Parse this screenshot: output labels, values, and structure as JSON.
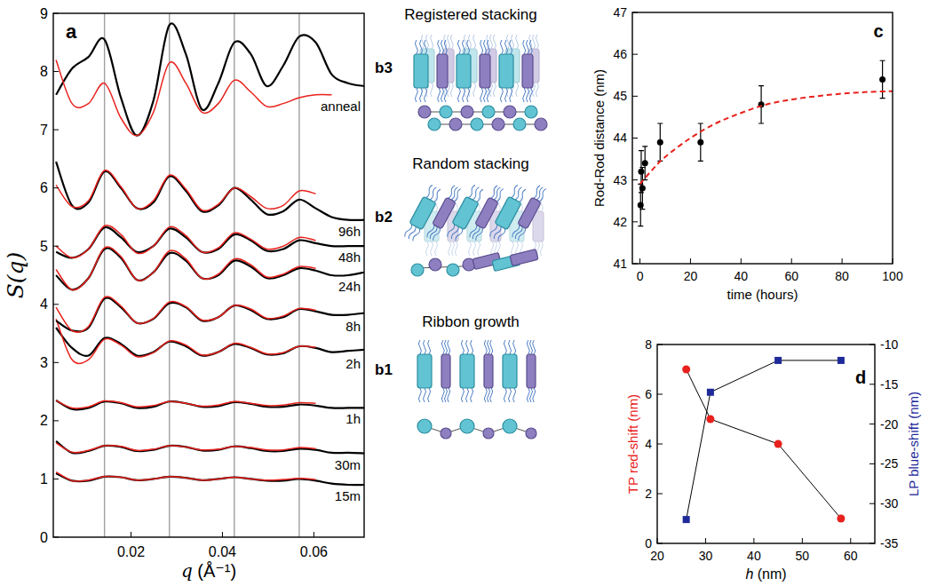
{
  "chart_data": [
    {
      "type": "line",
      "panel_label": "a",
      "x_label": "q  (Å⁻¹)",
      "y_label": "S(q)",
      "x": [
        0.0036,
        0.0071,
        0.0107,
        0.0142,
        0.0178,
        0.0213,
        0.0249,
        0.0284,
        0.032,
        0.0355,
        0.0391,
        0.0426,
        0.0462,
        0.0497,
        0.0533,
        0.0568,
        0.0604,
        0.0639,
        0.0675,
        0.071
      ],
      "xlim": [
        0.003,
        0.071
      ],
      "xticks": [
        0.02,
        0.04,
        0.06
      ],
      "ylim": [
        0,
        9
      ],
      "yticks": [
        0,
        1,
        2,
        3,
        4,
        5,
        6,
        7,
        8,
        9
      ],
      "reference_lines": [
        0.0142,
        0.0284,
        0.0426,
        0.0568
      ],
      "series": [
        {
          "name": "15m",
          "color": "#000000",
          "values": [
            1.1,
            0.97,
            0.97,
            1.04,
            1.03,
            0.98,
            1.0,
            1.04,
            1.02,
            0.98,
            1.0,
            1.03,
            1.0,
            0.97,
            0.97,
            1.0,
            0.97,
            0.92,
            0.9,
            0.9
          ]
        },
        {
          "color": "#e8211c",
          "values": [
            1.12,
            0.97,
            0.98,
            1.04,
            1.03,
            0.98,
            1.0,
            1.04,
            1.02,
            0.98,
            1.0,
            1.03,
            1.0,
            0.98,
            0.99,
            1.01,
            0.99,
            null,
            null,
            null
          ]
        },
        {
          "name": "30m",
          "color": "#000000",
          "values": [
            1.65,
            1.45,
            1.48,
            1.57,
            1.55,
            1.48,
            1.5,
            1.57,
            1.55,
            1.49,
            1.5,
            1.56,
            1.53,
            1.48,
            1.48,
            1.52,
            1.5,
            1.45,
            1.45,
            1.44
          ]
        },
        {
          "color": "#e8211c",
          "values": [
            1.62,
            1.46,
            1.49,
            1.57,
            1.56,
            1.49,
            1.51,
            1.57,
            1.55,
            1.5,
            1.51,
            1.56,
            1.54,
            1.5,
            1.5,
            1.54,
            1.52,
            null,
            null,
            null
          ]
        },
        {
          "name": "1h",
          "color": "#000000",
          "values": [
            2.35,
            2.2,
            2.22,
            2.33,
            2.3,
            2.22,
            2.24,
            2.33,
            2.3,
            2.24,
            2.25,
            2.32,
            2.29,
            2.24,
            2.24,
            2.28,
            2.26,
            2.22,
            2.22,
            2.22
          ]
        },
        {
          "color": "#e8211c",
          "values": [
            2.35,
            2.22,
            2.24,
            2.34,
            2.31,
            2.24,
            2.26,
            2.33,
            2.3,
            2.25,
            2.27,
            2.33,
            2.3,
            2.26,
            2.27,
            2.31,
            2.3,
            null,
            null,
            null
          ]
        },
        {
          "name": "2h",
          "color": "#000000",
          "values": [
            3.6,
            3.25,
            3.12,
            3.42,
            3.32,
            3.12,
            3.18,
            3.36,
            3.28,
            3.12,
            3.18,
            3.32,
            3.25,
            3.14,
            3.16,
            3.28,
            3.25,
            3.18,
            3.2,
            3.22
          ]
        },
        {
          "color": "#e8211c",
          "values": [
            3.75,
            3.05,
            3.05,
            3.4,
            3.3,
            3.1,
            3.17,
            3.37,
            3.3,
            3.13,
            3.18,
            3.33,
            3.26,
            3.15,
            3.17,
            3.28,
            3.26,
            null,
            null,
            null
          ]
        },
        {
          "name": "8h",
          "color": "#000000",
          "values": [
            3.72,
            3.55,
            3.6,
            4.1,
            3.95,
            3.68,
            3.75,
            4.02,
            3.95,
            3.72,
            3.78,
            3.98,
            3.9,
            3.75,
            3.78,
            3.92,
            3.88,
            3.82,
            3.82,
            3.85
          ]
        },
        {
          "color": "#e8211c",
          "values": [
            3.95,
            3.55,
            3.62,
            4.12,
            3.97,
            3.68,
            3.76,
            4.04,
            3.96,
            3.73,
            3.78,
            3.98,
            3.92,
            3.76,
            3.8,
            3.93,
            3.9,
            null,
            null,
            null
          ]
        },
        {
          "name": "24h",
          "color": "#000000",
          "values": [
            4.5,
            4.25,
            4.45,
            4.95,
            4.8,
            4.42,
            4.55,
            4.88,
            4.75,
            4.45,
            4.5,
            4.75,
            4.65,
            4.45,
            4.5,
            4.62,
            4.58,
            4.5,
            4.5,
            4.55
          ]
        },
        {
          "color": "#e8211c",
          "values": [
            4.6,
            4.25,
            4.45,
            4.97,
            4.82,
            4.42,
            4.55,
            4.92,
            4.78,
            4.45,
            4.52,
            4.78,
            4.68,
            4.47,
            4.52,
            4.65,
            4.62,
            null,
            null,
            null
          ]
        },
        {
          "name": "48h",
          "color": "#000000",
          "values": [
            4.9,
            4.8,
            4.95,
            5.32,
            5.15,
            4.9,
            5.0,
            5.3,
            5.15,
            4.9,
            4.95,
            5.2,
            5.1,
            4.92,
            4.95,
            5.1,
            5.05,
            5.0,
            5.0,
            5.0
          ]
        },
        {
          "color": "#e8211c",
          "values": [
            5.0,
            4.8,
            4.95,
            5.35,
            5.2,
            4.88,
            5.0,
            5.33,
            5.18,
            4.9,
            4.97,
            5.23,
            5.12,
            4.95,
            5.0,
            5.15,
            5.1,
            null,
            null,
            null
          ]
        },
        {
          "name": "96h",
          "color": "#000000",
          "values": [
            6.45,
            5.7,
            5.75,
            6.28,
            6.0,
            5.65,
            5.75,
            6.2,
            5.95,
            5.6,
            5.7,
            6.0,
            5.8,
            5.55,
            5.6,
            5.8,
            5.65,
            5.5,
            5.45,
            5.45
          ]
        },
        {
          "color": "#e8211c",
          "values": [
            6.05,
            5.68,
            5.78,
            6.3,
            6.02,
            5.65,
            5.78,
            6.22,
            5.98,
            5.62,
            5.72,
            6.0,
            5.85,
            5.65,
            5.7,
            5.95,
            5.9,
            null,
            null,
            null
          ]
        },
        {
          "name": "anneal",
          "color": "#000000",
          "values": [
            7.6,
            8.05,
            8.25,
            8.55,
            7.55,
            6.9,
            7.5,
            8.8,
            8.3,
            7.35,
            7.8,
            8.5,
            8.3,
            7.75,
            8.1,
            8.6,
            8.5,
            7.95,
            7.8,
            7.75
          ]
        },
        {
          "color": "#e8211c",
          "values": [
            8.2,
            7.45,
            7.45,
            7.8,
            7.2,
            6.9,
            7.3,
            8.15,
            7.8,
            7.3,
            7.45,
            7.85,
            7.65,
            7.4,
            7.45,
            7.55,
            7.6,
            7.6,
            null,
            null
          ]
        }
      ]
    },
    {
      "type": "scatter",
      "panel_label": "c",
      "x_label": "time (hours)",
      "y_label": "Rod-Rod distance (nm)",
      "xlim": [
        -3,
        100
      ],
      "xticks": [
        0,
        20,
        40,
        60,
        80,
        100
      ],
      "ylim": [
        41,
        47
      ],
      "yticks": [
        41,
        42,
        43,
        44,
        45,
        46,
        47
      ],
      "series": [
        {
          "type": "scatter",
          "color": "#000000",
          "marker": "circle",
          "x": [
            0.25,
            0.5,
            1,
            2,
            8,
            24,
            48,
            96
          ],
          "values": [
            42.4,
            43.2,
            42.8,
            43.4,
            43.9,
            43.9,
            44.8,
            45.4
          ],
          "errors": [
            0.5,
            0.5,
            0.5,
            0.4,
            0.45,
            0.45,
            0.45,
            0.45
          ]
        },
        {
          "type": "line",
          "color": "#e8211c",
          "line_style": "dashed",
          "x": [
            0,
            5,
            10,
            20,
            30,
            40,
            50,
            60,
            70,
            80,
            90,
            100
          ],
          "values": [
            42.9,
            43.25,
            43.55,
            44.0,
            44.35,
            44.6,
            44.8,
            44.92,
            45.0,
            45.06,
            45.1,
            45.12
          ]
        }
      ]
    },
    {
      "type": "line",
      "panel_label": "d",
      "x_label": "h (nm)",
      "y_label": "TP red-shift (nm)",
      "y2_label": "LP blue-shift (nm)",
      "x": [
        26,
        31,
        45,
        58
      ],
      "xlim": [
        20,
        65
      ],
      "xticks": [
        20,
        30,
        40,
        50,
        60
      ],
      "ylim": [
        0,
        8
      ],
      "yticks": [
        0,
        2,
        4,
        6,
        8
      ],
      "y2lim": [
        -35,
        -10
      ],
      "y2ticks": [
        -35,
        -30,
        -25,
        -20,
        -15,
        -10
      ],
      "series": [
        {
          "color": "#e8211c",
          "marker": "circle",
          "values": [
            7,
            5,
            4,
            1
          ]
        },
        {
          "color": "#1f2a9a",
          "marker": "square",
          "axis": "y2",
          "values": [
            -32,
            -16,
            -12,
            -12
          ]
        }
      ]
    }
  ],
  "diagram": {
    "panels": [
      {
        "label": "b3",
        "title": "Registered stacking"
      },
      {
        "label": "b2",
        "title": "Random stacking"
      },
      {
        "label": "b1",
        "title": "Ribbon growth"
      }
    ]
  }
}
